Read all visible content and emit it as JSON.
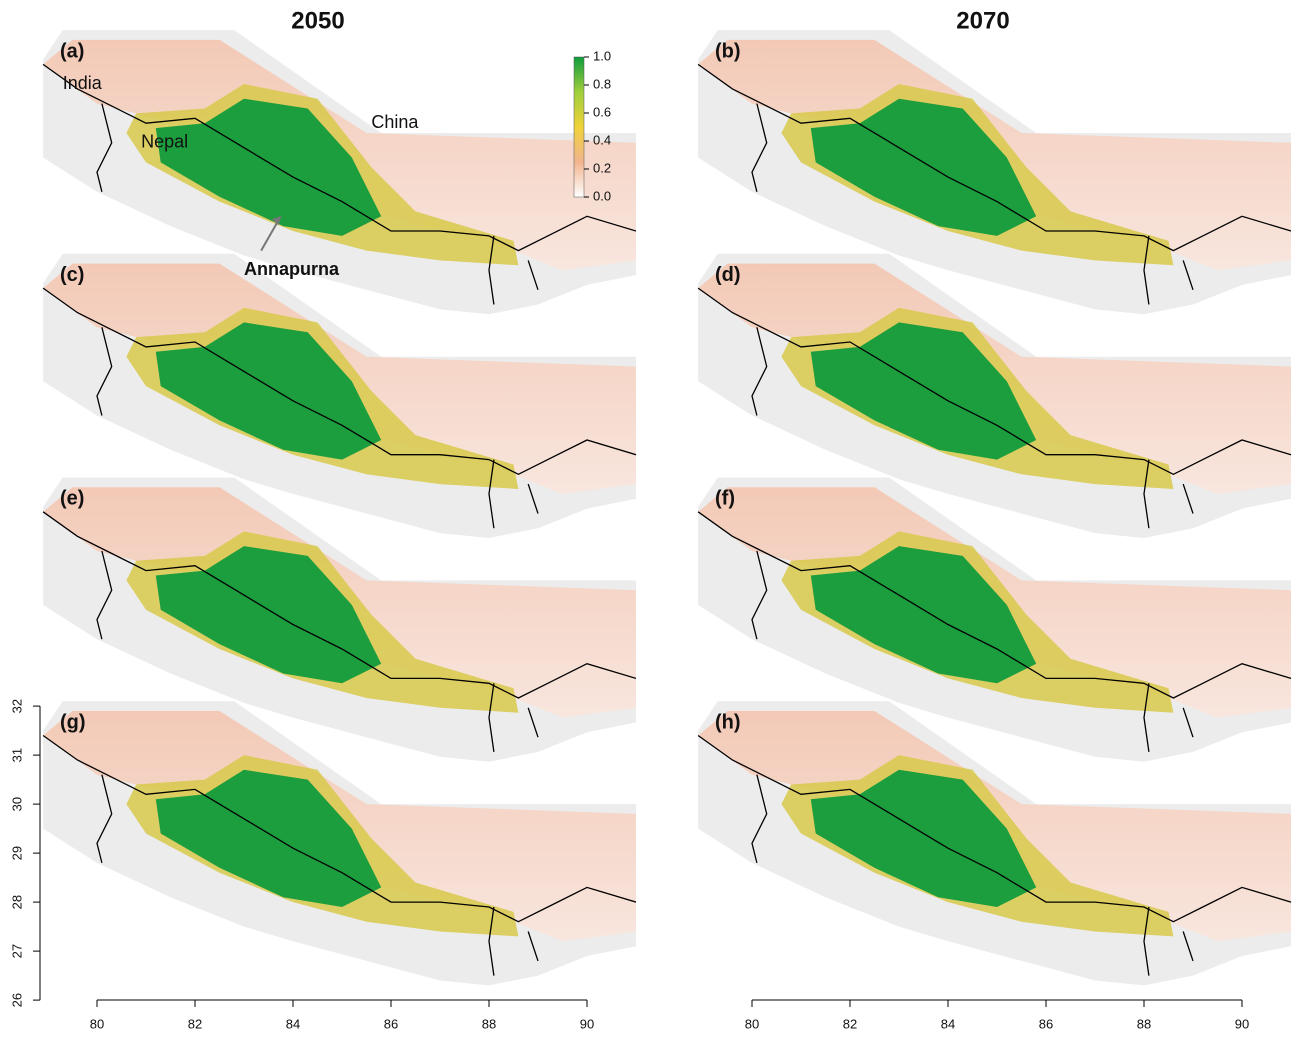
{
  "columns": [
    "2050",
    "2070"
  ],
  "panels": [
    {
      "label": "(a)"
    },
    {
      "label": "(b)"
    },
    {
      "label": "(c)"
    },
    {
      "label": "(d)"
    },
    {
      "label": "(e)"
    },
    {
      "label": "(f)"
    },
    {
      "label": "(g)"
    },
    {
      "label": "(h)"
    }
  ],
  "places": {
    "india": "India",
    "nepal": "Nepal",
    "china": "China",
    "annapurna": "Annapurna"
  },
  "legend": {
    "ticks": [
      {
        "value": 1,
        "label": "1.0"
      },
      0.8,
      0.6,
      0.4,
      0.2,
      {
        "value": 0,
        "label": "0.0"
      }
    ],
    "colors": [
      "#ffffff",
      "#f2b48f",
      "#f0d23a",
      "#9fcf3c",
      "#0f9c3c"
    ]
  },
  "x_axis": {
    "ticks": [
      80,
      82,
      84,
      86,
      88,
      90
    ]
  },
  "y_axis": {
    "ticks": [
      26,
      27,
      28,
      29,
      30,
      31,
      32
    ]
  }
}
